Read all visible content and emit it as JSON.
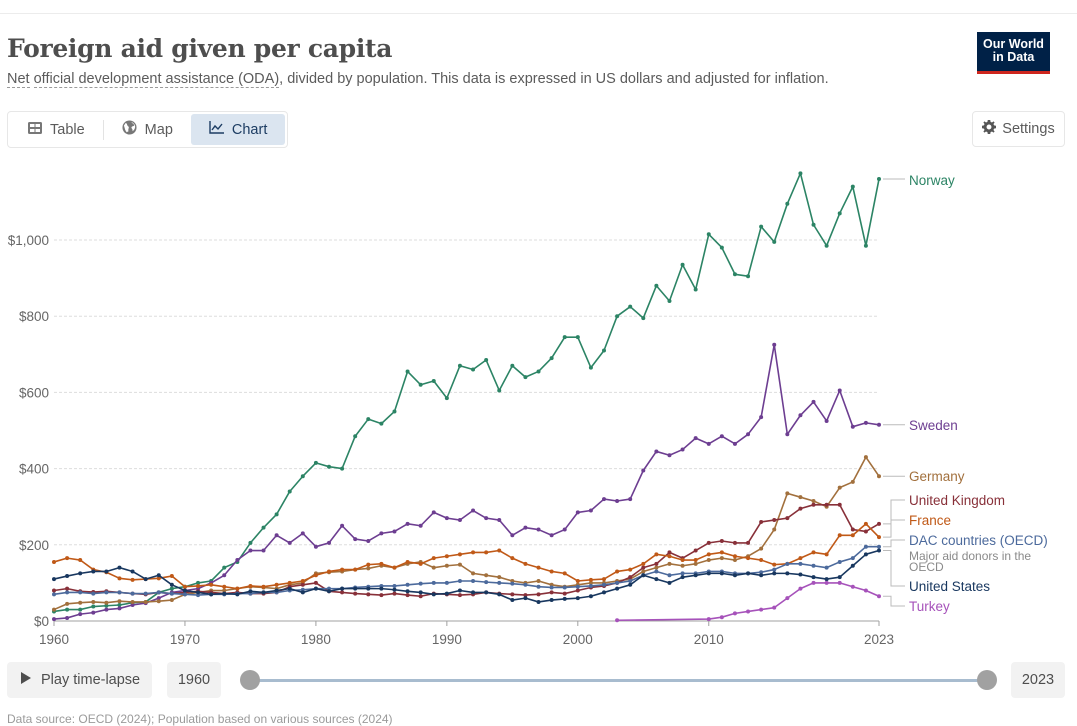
{
  "header": {
    "title": "Foreign aid given per capita",
    "subtitle_link1": "Net",
    "subtitle_link2": "official development assistance (ODA)",
    "subtitle_rest": ", divided by population. This data is expressed in US dollars and adjusted for inflation.",
    "logo_line1": "Our World",
    "logo_line2": "in Data"
  },
  "tabs": [
    {
      "label": "Table",
      "icon": "table-icon",
      "active": false
    },
    {
      "label": "Map",
      "icon": "globe-icon",
      "active": false
    },
    {
      "label": "Chart",
      "icon": "line-chart-icon",
      "active": true
    }
  ],
  "settings_label": "Settings",
  "controls": {
    "play_label": "Play time-lapse",
    "start_year": "1960",
    "end_year": "2023",
    "range_start_fraction": 0,
    "range_end_fraction": 1
  },
  "footer_text": "Data source: OECD (2024); Population based on various sources (2024)",
  "chart_data": {
    "type": "line",
    "title": "Foreign aid given per capita",
    "xlabel": "",
    "ylabel": "",
    "x_start": 1960,
    "x_end": 2023,
    "xlim": [
      1960,
      2023
    ],
    "ylim": [
      0,
      1200
    ],
    "x_ticks": [
      1960,
      1970,
      1980,
      1990,
      2000,
      2010,
      2023
    ],
    "y_ticks": [
      {
        "value": 0,
        "label": "$0"
      },
      {
        "value": 200,
        "label": "$200"
      },
      {
        "value": 400,
        "label": "$400"
      },
      {
        "value": 600,
        "label": "$600"
      },
      {
        "value": 800,
        "label": "$800"
      },
      {
        "value": 1000,
        "label": "$1,000"
      }
    ],
    "grid": "horizontal-dotted",
    "legend": "right-end-labels",
    "series": [
      {
        "name": "Norway",
        "color": "#2c8465",
        "start": 1960,
        "values": [
          25,
          30,
          30,
          38,
          40,
          42,
          48,
          50,
          75,
          85,
          90,
          100,
          105,
          140,
          155,
          205,
          245,
          280,
          340,
          380,
          415,
          405,
          400,
          485,
          530,
          518,
          550,
          655,
          620,
          630,
          585,
          670,
          660,
          685,
          605,
          670,
          640,
          655,
          690,
          745,
          745,
          665,
          710,
          800,
          825,
          795,
          880,
          840,
          935,
          870,
          1015,
          980,
          910,
          905,
          1035,
          995,
          1095,
          1175,
          1040,
          985,
          1070,
          1140,
          985,
          1160
        ]
      },
      {
        "name": "Sweden",
        "color": "#6d3e91",
        "start": 1960,
        "values": [
          5,
          8,
          18,
          22,
          30,
          33,
          42,
          47,
          60,
          75,
          80,
          85,
          100,
          120,
          160,
          185,
          185,
          225,
          205,
          230,
          195,
          205,
          250,
          215,
          210,
          230,
          235,
          255,
          250,
          285,
          270,
          265,
          290,
          270,
          265,
          225,
          245,
          240,
          225,
          240,
          285,
          290,
          320,
          315,
          320,
          395,
          445,
          435,
          450,
          480,
          465,
          485,
          465,
          490,
          535,
          725,
          490,
          540,
          575,
          525,
          605,
          510,
          520,
          515
        ]
      },
      {
        "name": "Germany",
        "color": "#a2703d",
        "start": 1960,
        "values": [
          30,
          45,
          48,
          50,
          48,
          52,
          50,
          50,
          52,
          55,
          70,
          75,
          80,
          80,
          85,
          90,
          88,
          85,
          95,
          100,
          125,
          128,
          130,
          135,
          138,
          145,
          140,
          150,
          155,
          140,
          145,
          148,
          125,
          120,
          115,
          105,
          100,
          105,
          95,
          90,
          95,
          100,
          100,
          105,
          110,
          130,
          140,
          150,
          145,
          150,
          160,
          165,
          160,
          170,
          190,
          240,
          335,
          325,
          315,
          300,
          350,
          365,
          430,
          380
        ]
      },
      {
        "name": "United Kingdom",
        "color": "#883039",
        "start": 1960,
        "values": [
          80,
          85,
          78,
          76,
          78,
          75,
          72,
          70,
          75,
          72,
          75,
          78,
          75,
          72,
          75,
          72,
          72,
          75,
          90,
          95,
          100,
          78,
          75,
          72,
          70,
          68,
          72,
          68,
          65,
          72,
          70,
          68,
          70,
          75,
          72,
          70,
          68,
          70,
          75,
          72,
          80,
          88,
          92,
          100,
          115,
          140,
          150,
          180,
          165,
          185,
          205,
          210,
          205,
          205,
          260,
          265,
          270,
          295,
          305,
          305,
          305,
          240,
          235,
          255
        ]
      },
      {
        "name": "France",
        "color": "#c05917",
        "start": 1960,
        "values": [
          155,
          165,
          160,
          135,
          128,
          112,
          108,
          110,
          112,
          118,
          90,
          92,
          95,
          90,
          85,
          92,
          90,
          95,
          100,
          105,
          120,
          130,
          135,
          135,
          148,
          150,
          140,
          155,
          150,
          165,
          170,
          175,
          180,
          180,
          185,
          165,
          150,
          140,
          130,
          125,
          105,
          108,
          110,
          130,
          135,
          150,
          175,
          170,
          160,
          160,
          175,
          180,
          170,
          165,
          160,
          148,
          150,
          165,
          180,
          175,
          225,
          225,
          255,
          220
        ]
      },
      {
        "name": "DAC countries (OECD)",
        "sublabel": "Major aid donors in the OECD",
        "color": "#4c6a9c",
        "start": 1960,
        "values": [
          70,
          75,
          75,
          72,
          75,
          75,
          72,
          72,
          75,
          72,
          70,
          68,
          70,
          70,
          72,
          72,
          75,
          75,
          80,
          82,
          85,
          85,
          85,
          88,
          90,
          92,
          92,
          95,
          98,
          100,
          100,
          105,
          105,
          102,
          100,
          98,
          95,
          90,
          88,
          88,
          90,
          92,
          95,
          100,
          105,
          120,
          130,
          120,
          125,
          125,
          130,
          130,
          125,
          125,
          128,
          135,
          150,
          150,
          145,
          140,
          155,
          165,
          195,
          195
        ]
      },
      {
        "name": "United States",
        "color": "#18375f",
        "start": 1960,
        "values": [
          110,
          118,
          125,
          130,
          130,
          140,
          130,
          110,
          120,
          95,
          80,
          75,
          70,
          72,
          70,
          78,
          75,
          80,
          85,
          75,
          85,
          78,
          85,
          85,
          85,
          85,
          82,
          78,
          75,
          70,
          72,
          80,
          75,
          75,
          70,
          55,
          60,
          50,
          55,
          58,
          60,
          65,
          75,
          85,
          95,
          120,
          110,
          100,
          115,
          120,
          125,
          125,
          120,
          125,
          120,
          125,
          125,
          122,
          115,
          110,
          115,
          145,
          175,
          185
        ]
      },
      {
        "name": "Turkey",
        "color": "#a652ba",
        "start": 1960,
        "values": [
          null,
          null,
          null,
          null,
          null,
          null,
          null,
          null,
          null,
          null,
          null,
          null,
          null,
          null,
          null,
          null,
          null,
          null,
          null,
          null,
          null,
          null,
          null,
          null,
          null,
          null,
          null,
          null,
          null,
          null,
          null,
          null,
          null,
          null,
          null,
          null,
          null,
          null,
          null,
          null,
          null,
          null,
          null,
          2,
          null,
          null,
          null,
          null,
          null,
          null,
          5,
          10,
          20,
          25,
          30,
          35,
          60,
          85,
          100,
          100,
          100,
          90,
          80,
          65
        ]
      }
    ]
  }
}
